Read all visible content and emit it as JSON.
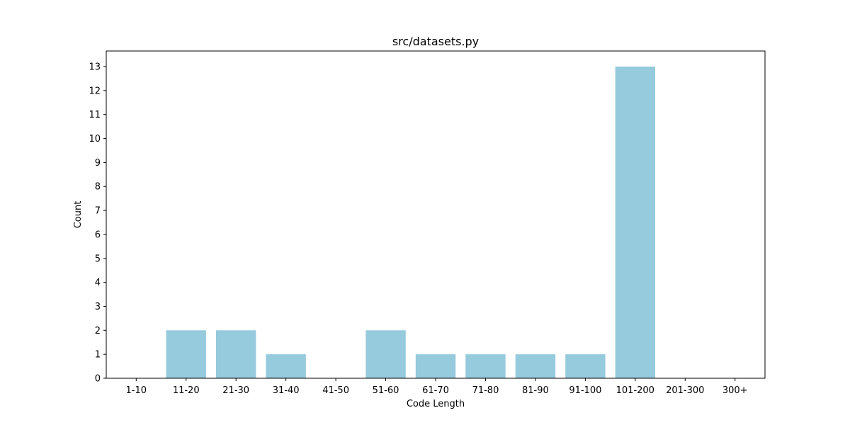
{
  "chart_data": {
    "type": "bar",
    "title": "src/datasets.py",
    "xlabel": "Code Length",
    "ylabel": "Count",
    "categories": [
      "1-10",
      "11-20",
      "21-30",
      "31-40",
      "41-50",
      "51-60",
      "61-70",
      "71-80",
      "81-90",
      "91-100",
      "101-200",
      "201-300",
      "300+"
    ],
    "values": [
      0,
      2,
      2,
      1,
      0,
      2,
      1,
      1,
      1,
      1,
      13,
      0,
      0
    ],
    "yticks": [
      0,
      1,
      2,
      3,
      4,
      5,
      6,
      7,
      8,
      9,
      10,
      11,
      12,
      13
    ],
    "ylim": [
      0,
      13.65
    ],
    "bar_color": "#96cadd",
    "grid": false,
    "legend": "none"
  }
}
